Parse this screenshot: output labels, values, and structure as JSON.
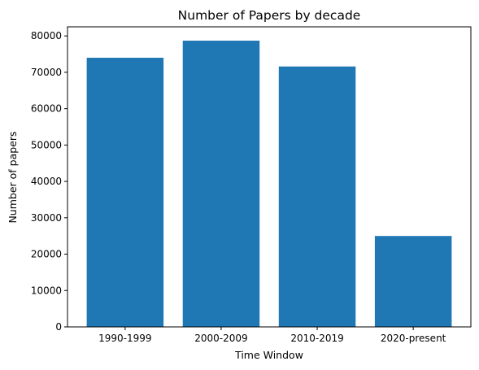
{
  "chart_data": {
    "type": "bar",
    "title": "Number of Papers by decade",
    "xlabel": "Time Window",
    "ylabel": "Number of papers",
    "categories": [
      "1990-1999",
      "2000-2009",
      "2010-2019",
      "2020-present"
    ],
    "values": [
      74000,
      78700,
      71600,
      25000
    ],
    "ylim": [
      0,
      82500
    ],
    "yticks": [
      0,
      10000,
      20000,
      30000,
      40000,
      50000,
      60000,
      70000,
      80000
    ],
    "ytick_labels": [
      "0",
      "10000",
      "20000",
      "30000",
      "40000",
      "50000",
      "60000",
      "70000",
      "80000"
    ],
    "grid": false,
    "bar_color": "#1f77b4"
  }
}
